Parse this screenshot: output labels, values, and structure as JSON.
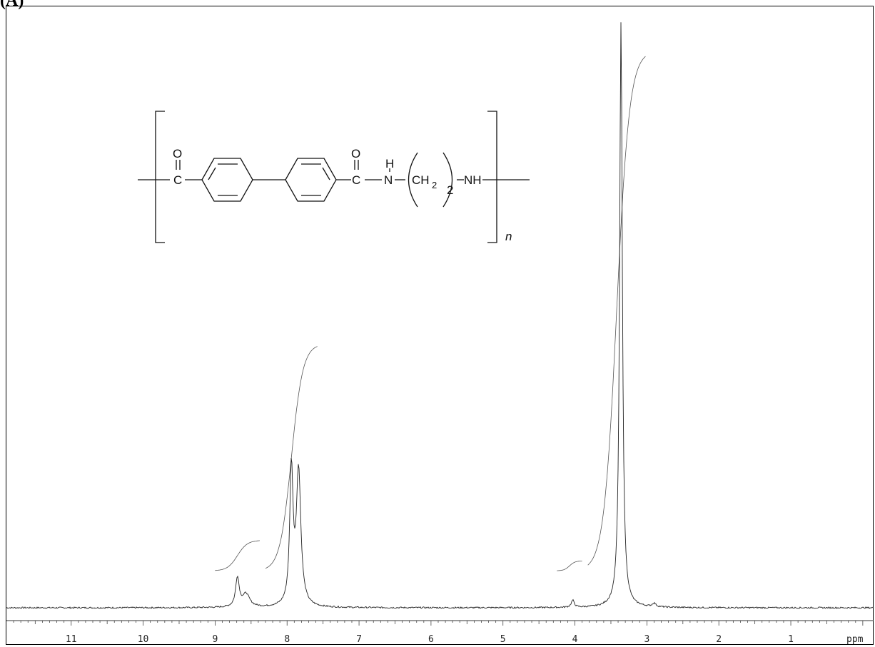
{
  "panel_label": "(A)",
  "structure": {
    "carbonyl_o": "O",
    "carbonyl_c": "C",
    "amide_h": "H",
    "amide_n": "N",
    "ch2": "CH",
    "ch2_sub": "2",
    "repeat_sub": "2",
    "nh": "NH",
    "repeat_n": "n"
  },
  "chart_data": {
    "type": "line",
    "title": "",
    "xlabel": "ppm",
    "ylabel": "",
    "x_reversed": true,
    "xlim": [
      11.9,
      -0.15
    ],
    "ylim": [
      0,
      1
    ],
    "tick_labels": [
      "11",
      "10",
      "9",
      "8",
      "7",
      "6",
      "5",
      "4",
      "3",
      "2",
      "1"
    ],
    "tick_values": [
      11,
      10,
      9,
      8,
      7,
      6,
      5,
      4,
      3,
      2,
      1
    ],
    "axis_unit_label": "ppm",
    "series": [
      {
        "role": "spectrum",
        "peaks": [
          {
            "ppm": 8.69,
            "height": 0.05,
            "width": 0.06
          },
          {
            "ppm": 8.57,
            "height": 0.022,
            "width": 0.12
          },
          {
            "ppm": 7.94,
            "height": 0.23,
            "width": 0.055
          },
          {
            "ppm": 7.84,
            "height": 0.23,
            "width": 0.075
          },
          {
            "ppm": 4.03,
            "height": 0.012,
            "width": 0.05
          },
          {
            "ppm": 3.36,
            "height": 1.0,
            "width": 0.045
          },
          {
            "ppm": 2.9,
            "height": 0.006,
            "width": 0.06
          }
        ],
        "baseline": 0.0
      },
      {
        "role": "integral",
        "segments": [
          {
            "from_ppm": 9.0,
            "to_ppm": 8.38,
            "start": 0.063,
            "end": 0.115
          },
          {
            "from_ppm": 8.3,
            "to_ppm": 7.58,
            "start": 0.063,
            "end": 0.45
          },
          {
            "from_ppm": 4.25,
            "to_ppm": 3.9,
            "start": 0.063,
            "end": 0.08
          },
          {
            "from_ppm": 3.82,
            "to_ppm": 3.02,
            "start": 0.063,
            "end": 0.95
          }
        ]
      }
    ],
    "grid": false,
    "legend": "none"
  }
}
